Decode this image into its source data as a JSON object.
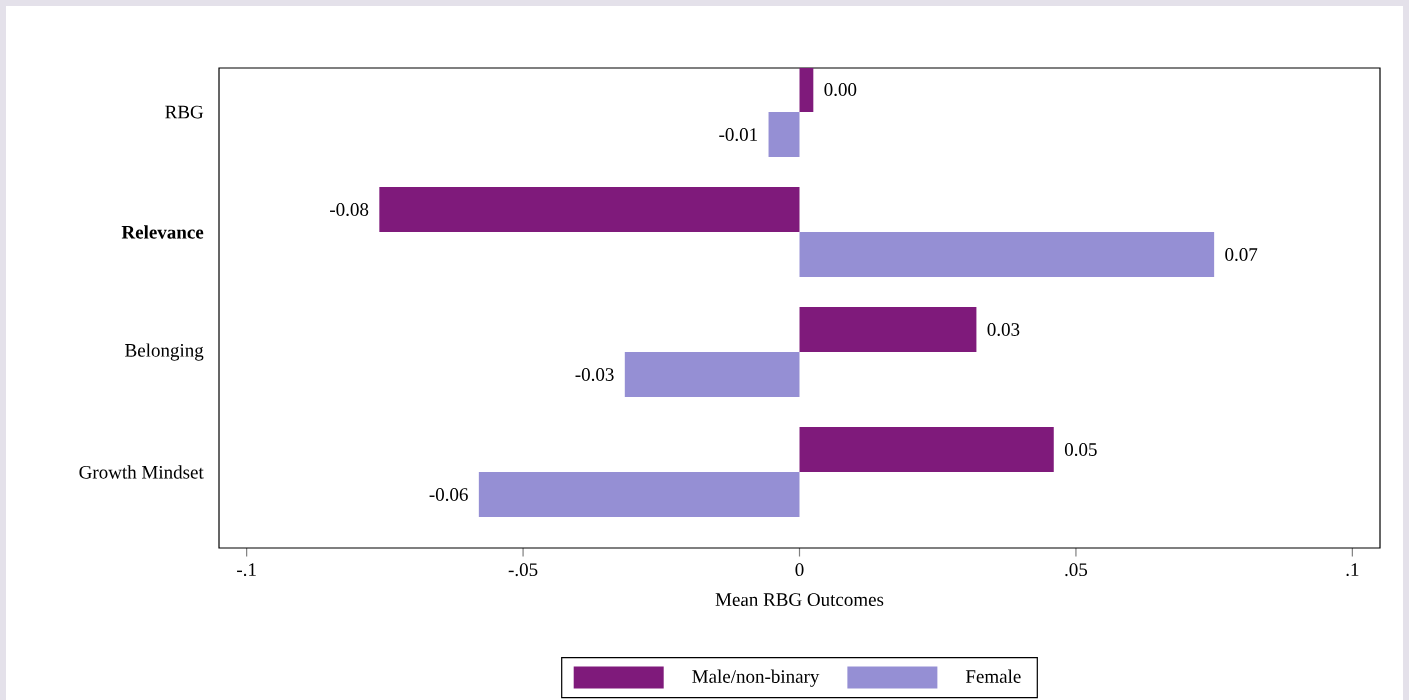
{
  "chart_data": {
    "type": "bar",
    "orientation": "horizontal",
    "xlabel": "Mean RBG Outcomes",
    "categories": [
      "RBG",
      "**Relevance**",
      "Belonging",
      "Growth Mindset"
    ],
    "series": [
      {
        "name": "Male/non-binary",
        "color": "#7f1a7b",
        "values": [
          0.0025,
          -0.076,
          0.032,
          0.046
        ],
        "value_labels": [
          "0.00",
          "-0.08",
          "0.03",
          "0.05"
        ]
      },
      {
        "name": "Female",
        "color": "#958fd4",
        "values": [
          -0.0056,
          0.075,
          -0.0316,
          -0.058
        ],
        "value_labels": [
          "-0.01",
          "0.07",
          "-0.03",
          "-0.06"
        ]
      }
    ],
    "xlim": [
      -0.105,
      0.105
    ],
    "xticks": [
      {
        "value": -0.1,
        "label": "-.1"
      },
      {
        "value": -0.05,
        "label": "-.05"
      },
      0,
      {
        "value": 0.05,
        "label": ".05"
      },
      {
        "value": 0.1,
        "label": ".1"
      }
    ],
    "legend": "bottom"
  }
}
